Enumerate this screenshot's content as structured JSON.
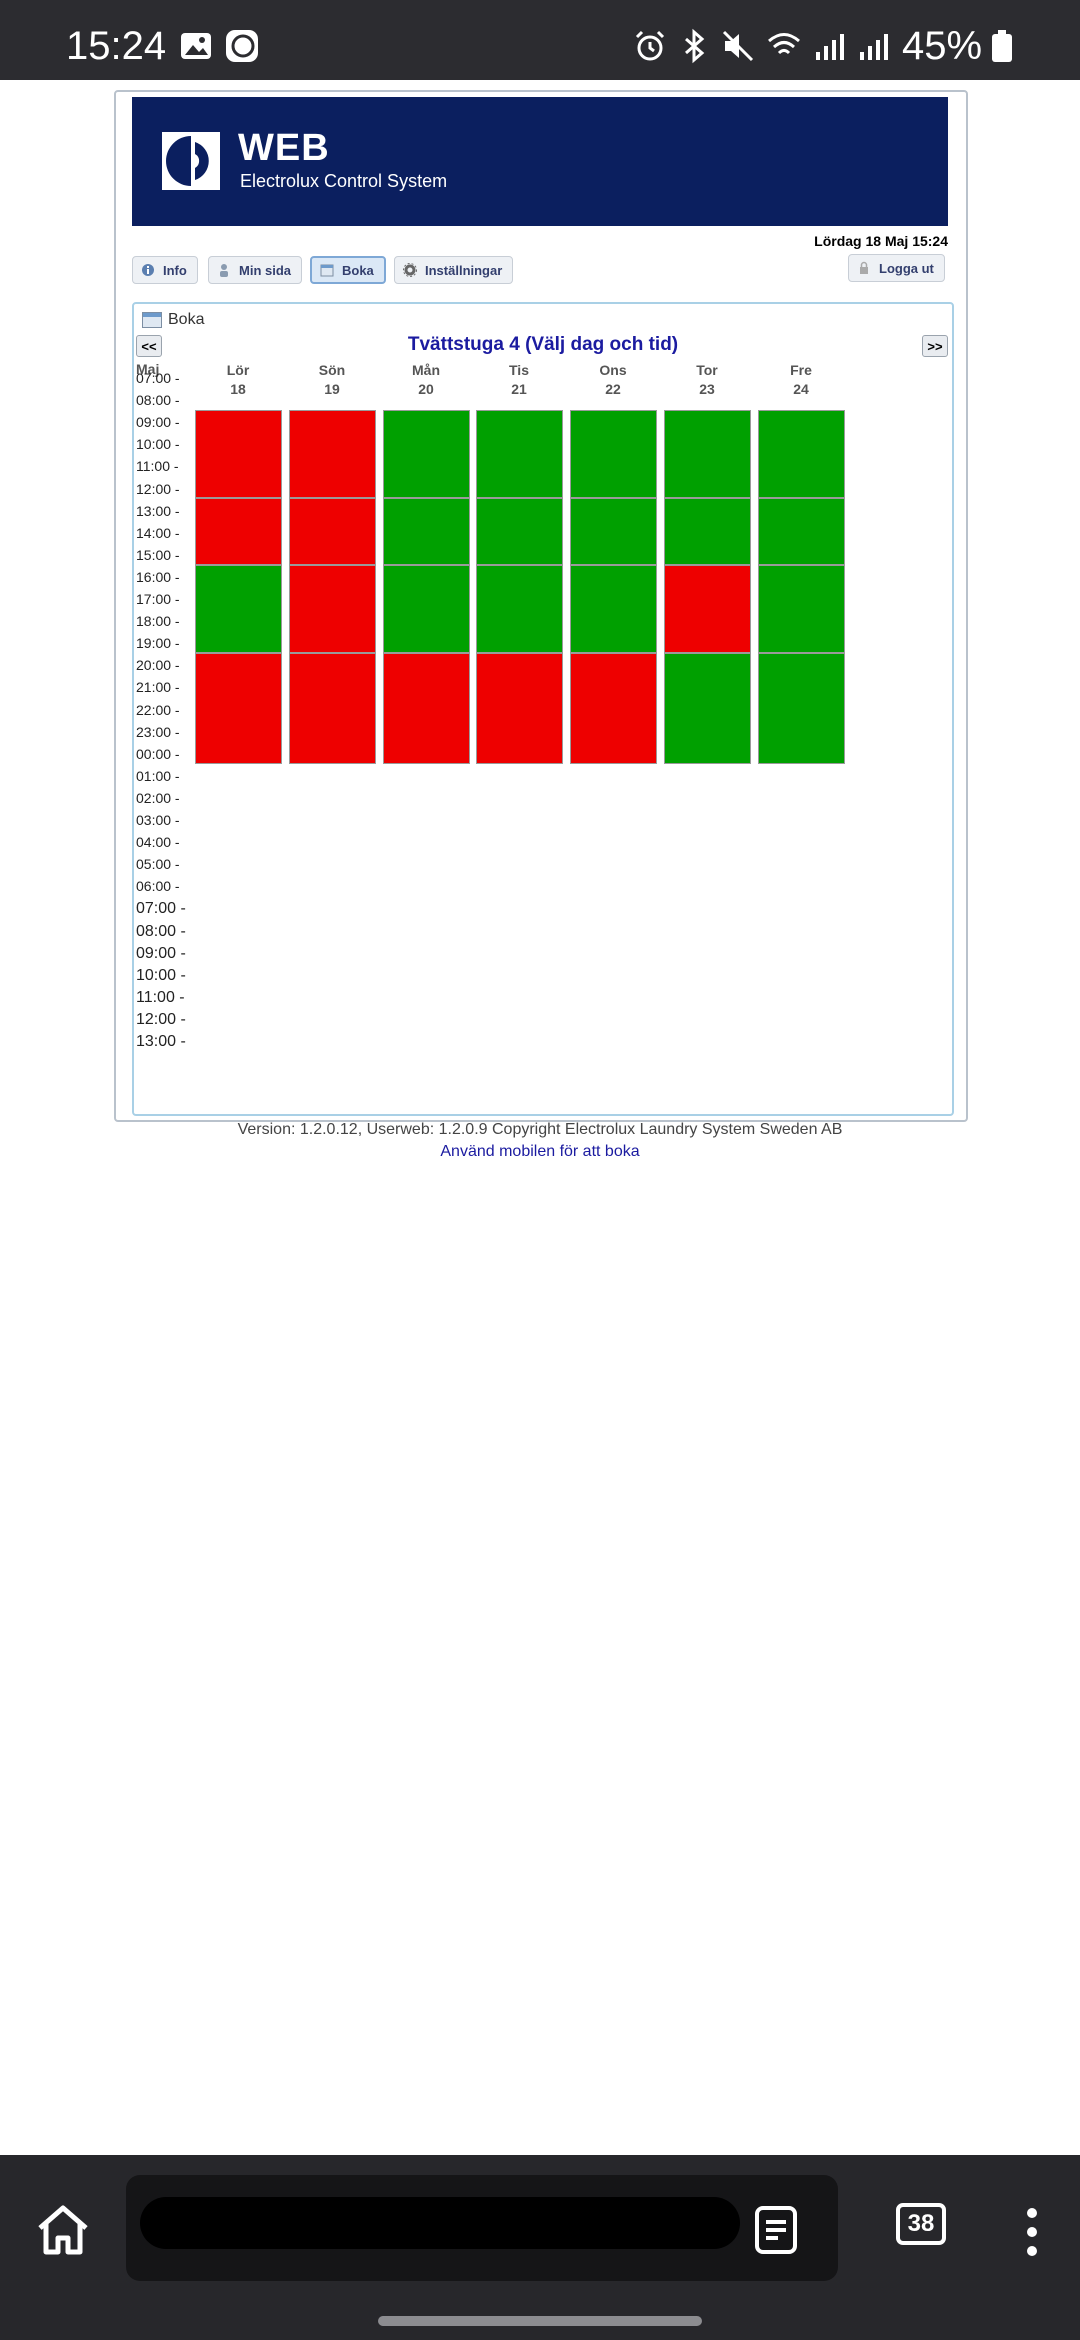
{
  "status_bar": {
    "time": "15:24",
    "battery": "45%"
  },
  "banner": {
    "brand": "WEB",
    "subtitle": "Electrolux Control System"
  },
  "header": {
    "datetime": "Lördag 18 Maj 15:24"
  },
  "tabs": [
    {
      "label": "Info"
    },
    {
      "label": "Min sida"
    },
    {
      "label": "Boka"
    },
    {
      "label": "Inställningar"
    }
  ],
  "logout_label": "Logga ut",
  "panel": {
    "title": "Boka",
    "prev": "<<",
    "next": ">>",
    "heading": "Tvättstuga 4 (Välj dag och tid)",
    "month": "Maj"
  },
  "days": [
    {
      "name": "Lör",
      "date": "18"
    },
    {
      "name": "Sön",
      "date": "19"
    },
    {
      "name": "Mån",
      "date": "20"
    },
    {
      "name": "Tis",
      "date": "21"
    },
    {
      "name": "Ons",
      "date": "22"
    },
    {
      "name": "Tor",
      "date": "23"
    },
    {
      "name": "Fre",
      "date": "24"
    }
  ],
  "time_labels": [
    "07:00 -",
    "08:00 -",
    "09:00 -",
    "10:00 -",
    "11:00 -",
    "12:00 -",
    "13:00 -",
    "14:00 -",
    "15:00 -",
    "16:00 -",
    "17:00 -",
    "18:00 -",
    "19:00 -",
    "20:00 -",
    "21:00 -",
    "22:00 -",
    "23:00 -",
    "00:00 -",
    "01:00 -",
    "02:00 -",
    "03:00 -",
    "04:00 -",
    "05:00 -",
    "06:00 -",
    "07:00 -",
    "08:00 -",
    "09:00 -",
    "10:00 -",
    "11:00 -",
    "12:00 -",
    "13:00 -"
  ],
  "slots": [
    "07:00-11:00",
    "11:00-14:00",
    "14:00-18:00",
    "18:00-23:00"
  ],
  "availability": [
    [
      "booked",
      "booked",
      "free",
      "booked"
    ],
    [
      "booked",
      "booked",
      "booked",
      "booked"
    ],
    [
      "free",
      "free",
      "free",
      "booked"
    ],
    [
      "free",
      "free",
      "free",
      "booked"
    ],
    [
      "free",
      "free",
      "free",
      "booked"
    ],
    [
      "free",
      "free",
      "booked",
      "free"
    ],
    [
      "free",
      "free",
      "free",
      "free"
    ]
  ],
  "colors": {
    "booked": "#ee0000",
    "free": "#00a000",
    "banner": "#0b1f5f",
    "heading": "#1b1ba0"
  },
  "footer": {
    "version": "Version: 1.2.0.12, Userweb: 1.2.0.9 Copyright Electrolux Laundry System Sweden AB",
    "mobile_link": "Använd mobilen för att boka"
  },
  "browser": {
    "tabs_count": "38"
  }
}
